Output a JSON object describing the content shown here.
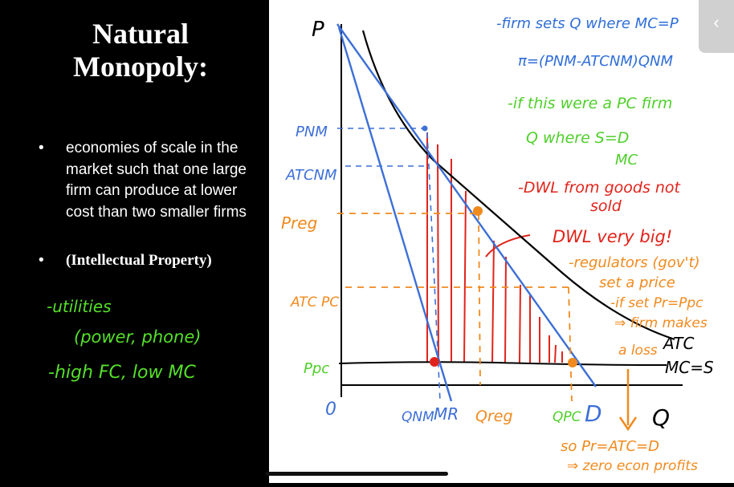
{
  "slide": {
    "title_line1": "Natural",
    "title_line2": "Monopoly:",
    "bullets": [
      "economies of scale in the market such that one large firm can produce at lower cost than two smaller firms",
      "(Intellectual Property)"
    ],
    "bullet_symbol": "•",
    "handwritten_notes": [
      "-utilities",
      "(power, phone)",
      "-high FC, low MC"
    ]
  },
  "graph": {
    "y_axis_label": "P",
    "x_axis_label": "Q",
    "origin_label": "0",
    "price_labels": {
      "pnm": "PNM",
      "atc_nm": "ATCNM",
      "preg": "Preg",
      "atc_pc": "ATC PC",
      "ppc": "Ppc"
    },
    "quantity_labels": {
      "qnm": "QNM",
      "mr": "MR",
      "qreg": "Qreg",
      "qpc": "QPC",
      "d": "D"
    },
    "curve_labels": {
      "atc": "ATC",
      "mc": "MC=S"
    },
    "annotations": {
      "blue_lines": [
        "-firm sets Q where MC=P",
        "π=(PNM-ATCNM)QNM"
      ],
      "green_lines": [
        "-if this were a PC firm",
        "Q where S=D",
        "MC"
      ],
      "red_lines": [
        "-DWL from goods not",
        "sold",
        "DWL very big!"
      ],
      "orange_lines": [
        "-regulators (gov't)",
        "set a price",
        "-if set Pr=Ppc",
        "⇒ firm makes",
        "a loss",
        "so Pr=ATC=D",
        "⇒ zero econ profits"
      ]
    },
    "colors": {
      "demand": "#3d6fd6",
      "atc": "#000000",
      "dwl": "#e0241b",
      "orange": "#f08a1e",
      "green": "#4fcf2a",
      "blue_note": "#2f6ed8"
    }
  },
  "ui": {
    "collapse_icon": "‹"
  }
}
